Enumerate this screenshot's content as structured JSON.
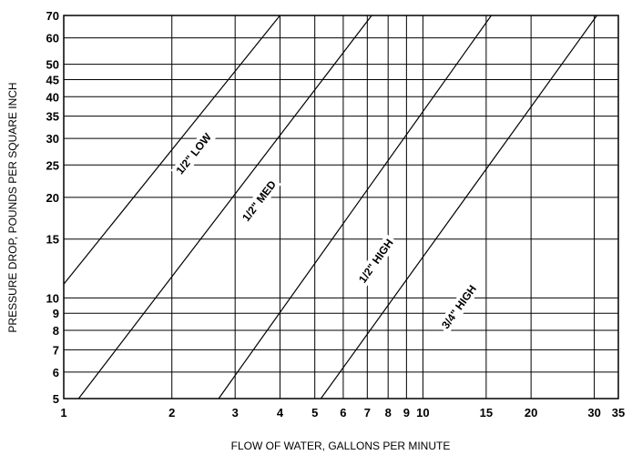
{
  "chart_data": {
    "type": "line",
    "title": "",
    "xlabel": "FLOW OF WATER, GALLONS PER MINUTE",
    "ylabel": "PRESSURE DROP, POUNDS PER SQUARE INCH",
    "x_scale": "log",
    "y_scale": "log",
    "xlim": [
      1,
      35
    ],
    "ylim": [
      5,
      70
    ],
    "grid": true,
    "legend": "none",
    "x_ticks": [
      1,
      2,
      3,
      4,
      5,
      6,
      7,
      8,
      9,
      10,
      15,
      20,
      30,
      35
    ],
    "y_ticks": [
      5,
      6,
      7,
      8,
      9,
      10,
      15,
      20,
      25,
      30,
      35,
      40,
      45,
      50,
      60,
      70
    ],
    "series": [
      {
        "name": "1/2\" LOW",
        "x": [
          1.0,
          4.0
        ],
        "y": [
          11,
          70
        ]
      },
      {
        "name": "1/2\" MED",
        "x": [
          1.1,
          7.2
        ],
        "y": [
          5,
          70
        ]
      },
      {
        "name": "1/2\" HIGH",
        "x": [
          2.7,
          15.5
        ],
        "y": [
          5,
          70
        ]
      },
      {
        "name": "3/4\" HIGH",
        "x": [
          5.2,
          30.5
        ],
        "y": [
          5,
          70
        ]
      }
    ],
    "series_label_positions": [
      {
        "x": 2.3,
        "y": 27
      },
      {
        "x": 3.5,
        "y": 19.5
      },
      {
        "x": 7.4,
        "y": 12.9
      },
      {
        "x": 12.6,
        "y": 9.4
      }
    ],
    "colors": {
      "line": "#000000",
      "grid": "#000000",
      "background": "#ffffff"
    }
  }
}
